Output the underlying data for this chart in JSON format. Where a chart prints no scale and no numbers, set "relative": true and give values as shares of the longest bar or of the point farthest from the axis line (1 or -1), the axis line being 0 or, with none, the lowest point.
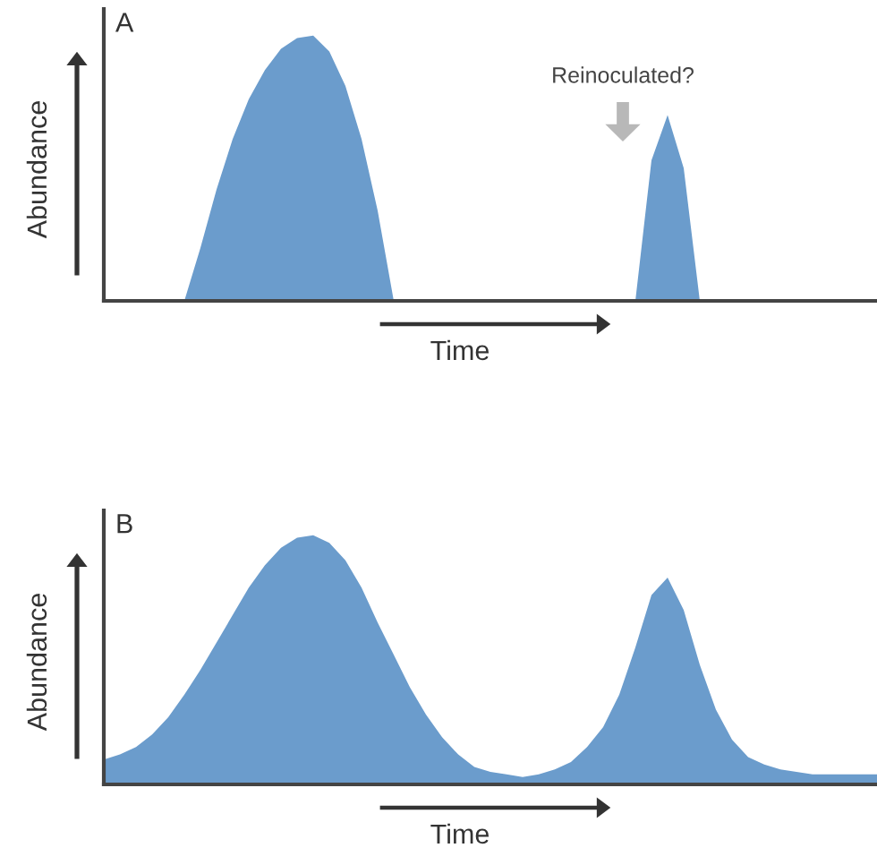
{
  "chart_data": [
    {
      "type": "area",
      "title": "A",
      "xlabel": "Time",
      "ylabel": "Abundance",
      "relative": true,
      "tick_labels": false,
      "annotations": [
        "Reinoculated?"
      ],
      "categories": [
        null,
        null,
        null,
        null,
        null,
        null,
        null,
        null,
        null,
        null,
        null,
        null,
        null,
        null,
        null,
        null,
        null,
        null,
        null,
        null,
        null,
        null,
        null,
        null,
        null,
        null,
        null,
        null,
        null,
        null,
        null,
        null,
        null,
        null,
        null,
        null,
        null,
        null,
        null,
        null,
        null,
        null,
        null,
        null,
        null,
        null,
        null,
        null,
        null
      ],
      "series": [
        {
          "color": "#6b9ccc",
          "values": [
            0,
            0,
            0,
            0,
            0,
            0,
            0.2,
            0.42,
            0.61,
            0.76,
            0.87,
            0.95,
            0.99,
            1,
            0.94,
            0.81,
            0.61,
            0.34,
            0,
            0,
            0,
            0,
            0,
            0,
            0,
            0,
            0,
            0,
            0,
            0,
            0,
            0,
            0,
            0,
            0.53,
            0.7,
            0.5,
            0,
            0,
            0,
            0,
            0,
            0,
            0,
            0,
            0,
            0,
            0,
            0
          ]
        }
      ]
    },
    {
      "type": "area",
      "title": "B",
      "xlabel": "Time",
      "ylabel": "Abundance",
      "relative": true,
      "tick_labels": false,
      "categories": [
        null,
        null,
        null,
        null,
        null,
        null,
        null,
        null,
        null,
        null,
        null,
        null,
        null,
        null,
        null,
        null,
        null,
        null,
        null,
        null,
        null,
        null,
        null,
        null,
        null,
        null,
        null,
        null,
        null,
        null,
        null,
        null,
        null,
        null,
        null,
        null,
        null,
        null,
        null,
        null,
        null,
        null,
        null,
        null,
        null,
        null,
        null,
        null,
        null
      ],
      "series": [
        {
          "color": "#6b9ccc",
          "values": [
            0.1,
            0.12,
            0.15,
            0.2,
            0.27,
            0.36,
            0.46,
            0.57,
            0.68,
            0.79,
            0.88,
            0.95,
            0.99,
            1,
            0.97,
            0.9,
            0.79,
            0.65,
            0.52,
            0.39,
            0.28,
            0.19,
            0.12,
            0.07,
            0.05,
            0.04,
            0.03,
            0.04,
            0.06,
            0.09,
            0.15,
            0.23,
            0.36,
            0.55,
            0.76,
            0.83,
            0.7,
            0.48,
            0.3,
            0.18,
            0.11,
            0.08,
            0.06,
            0.05,
            0.04,
            0.04,
            0.04,
            0.04,
            0.04
          ]
        }
      ]
    }
  ]
}
